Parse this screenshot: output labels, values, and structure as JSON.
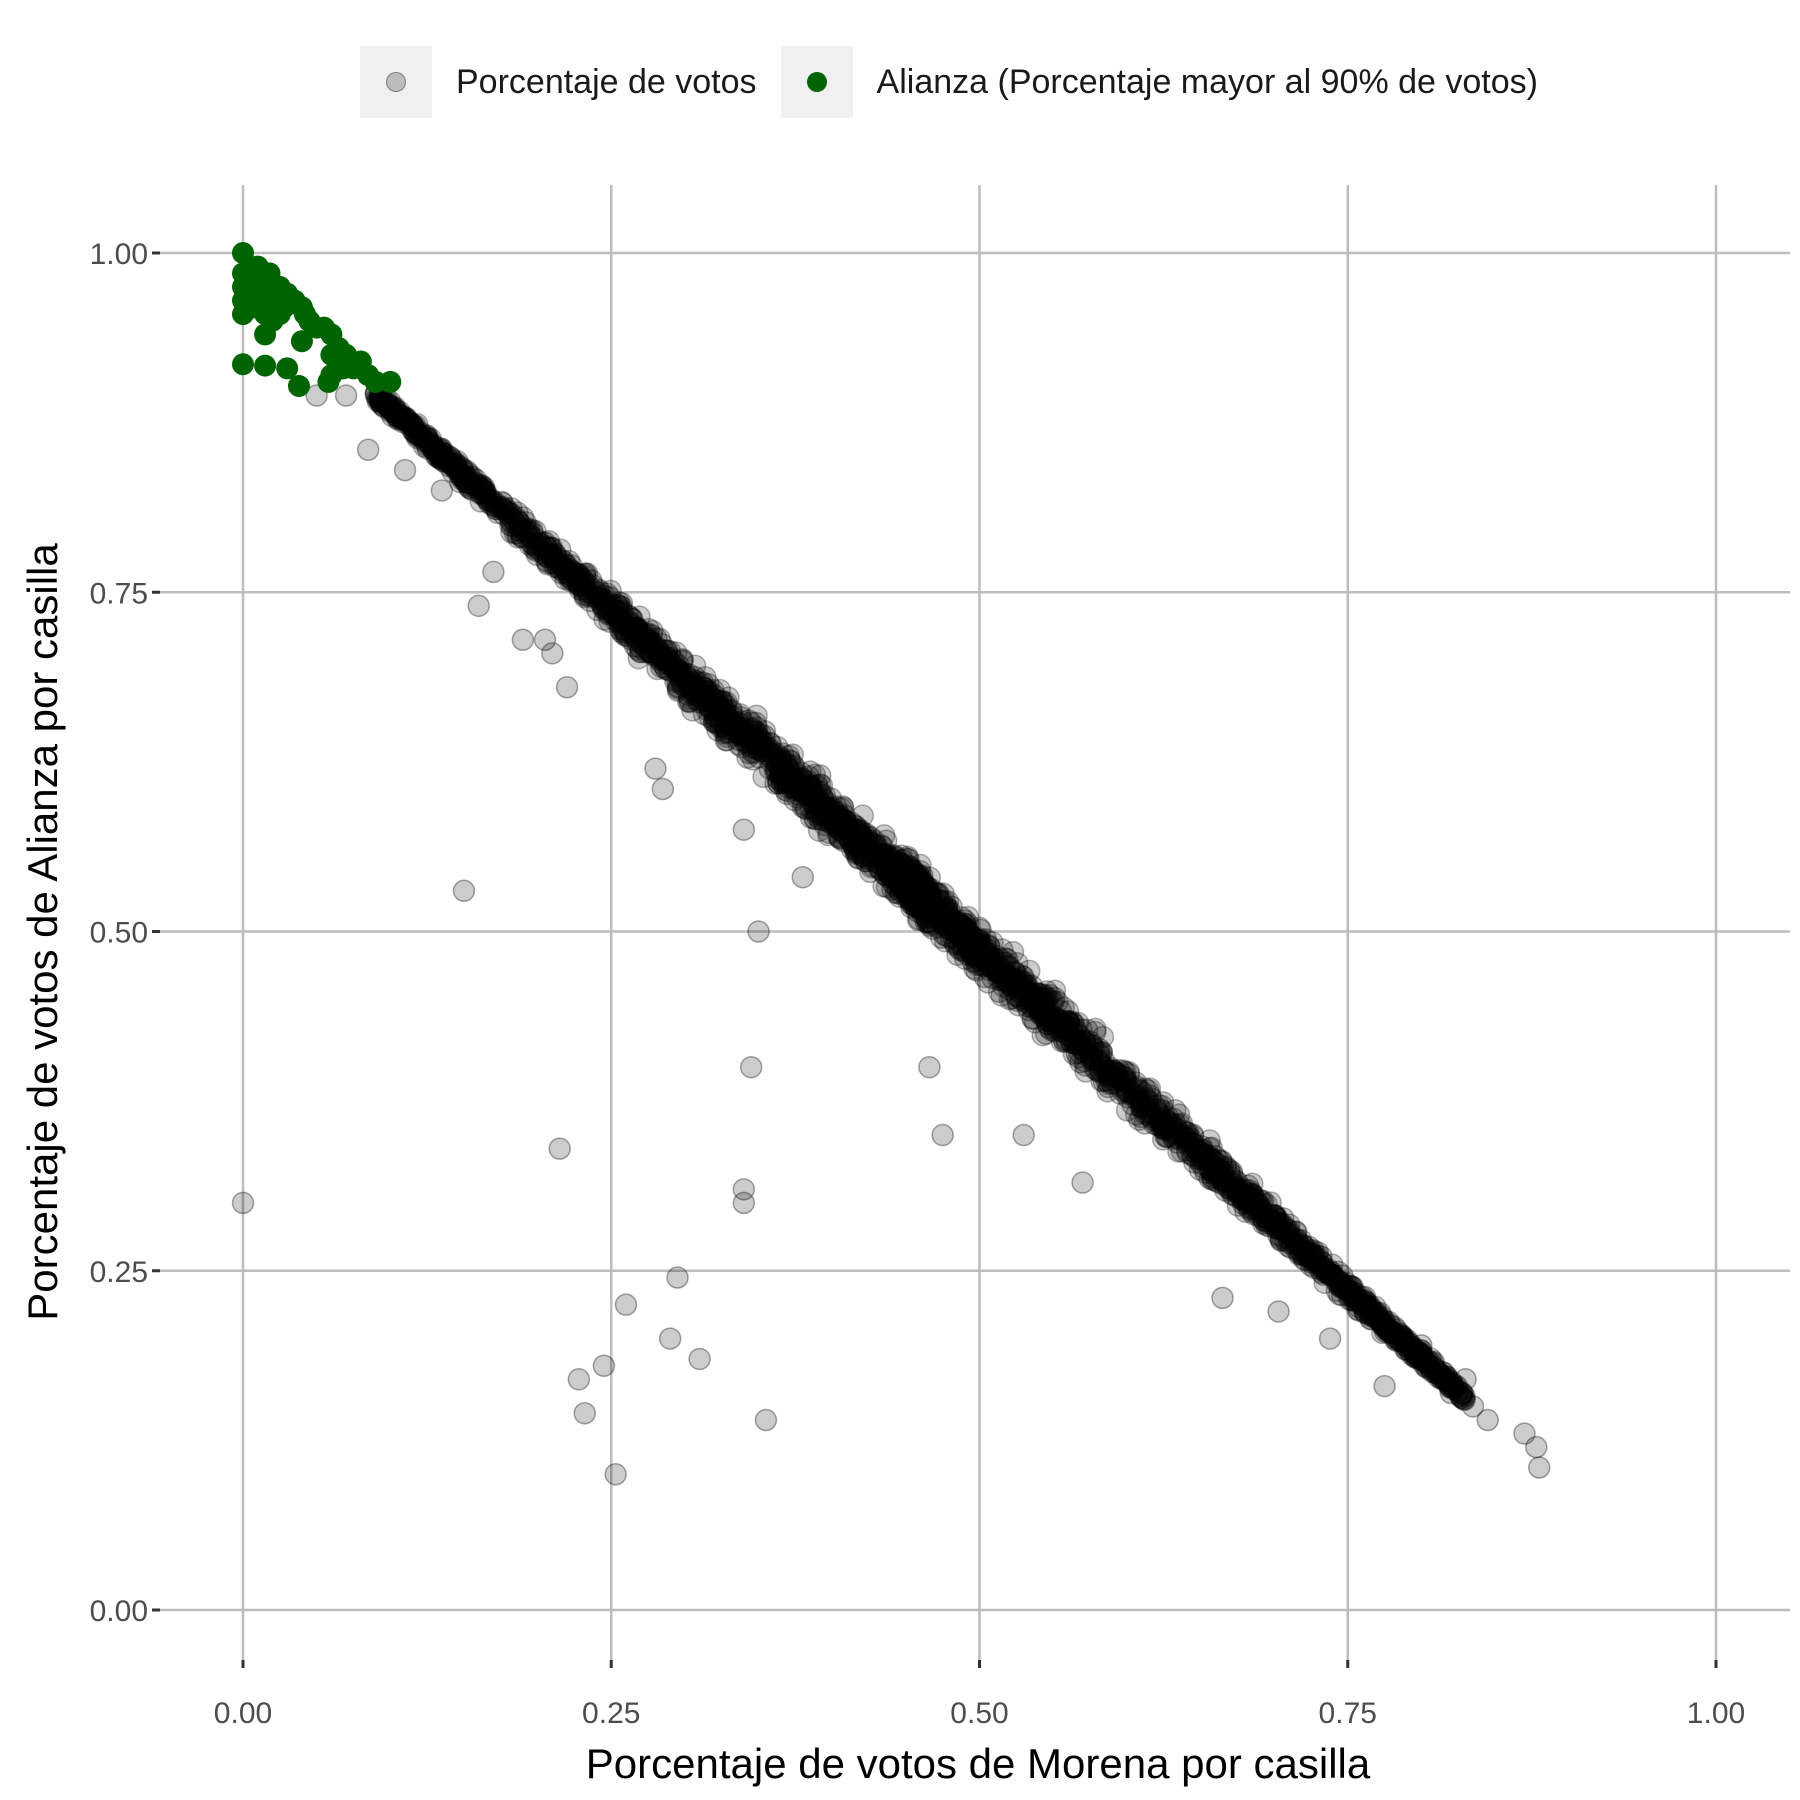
{
  "legend": {
    "item1": "Porcentaje de votos",
    "item2": "Alianza (Porcentaje mayor al 90% de votos)"
  },
  "colors": {
    "points": "#000000",
    "highlight": "#006400",
    "grid": "#bdbdbd"
  },
  "chart_data": {
    "type": "scatter",
    "xlabel": "Porcentaje de votos de Morena por casilla",
    "ylabel": "Porcentaje de votos de Alianza por casilla",
    "xlim": [
      0,
      1
    ],
    "ylim": [
      0,
      1
    ],
    "x_ticks": [
      "0.00",
      "0.25",
      "0.50",
      "0.75",
      "1.00"
    ],
    "y_ticks": [
      "0.00",
      "0.25",
      "0.50",
      "0.75",
      "1.00"
    ],
    "grid": true,
    "legend_position": "top",
    "main_trend": {
      "x_start": 0.09,
      "x_end": 0.83,
      "relation": "y ≈ 0.99 − x"
    },
    "series": [
      {
        "name": "Porcentaje de votos",
        "marker": "grey semi-transparent circle",
        "points": [
          [
            0.0,
            0.3
          ],
          [
            0.15,
            0.53
          ],
          [
            0.35,
            0.5
          ],
          [
            0.345,
            0.4
          ],
          [
            0.215,
            0.34
          ],
          [
            0.34,
            0.31
          ],
          [
            0.34,
            0.3
          ],
          [
            0.295,
            0.245
          ],
          [
            0.26,
            0.225
          ],
          [
            0.29,
            0.2
          ],
          [
            0.31,
            0.185
          ],
          [
            0.245,
            0.18
          ],
          [
            0.228,
            0.17
          ],
          [
            0.232,
            0.145
          ],
          [
            0.355,
            0.14
          ],
          [
            0.253,
            0.1
          ],
          [
            0.475,
            0.35
          ],
          [
            0.466,
            0.4
          ],
          [
            0.57,
            0.315
          ],
          [
            0.53,
            0.35
          ],
          [
            0.665,
            0.23
          ],
          [
            0.703,
            0.22
          ],
          [
            0.738,
            0.2
          ],
          [
            0.775,
            0.165
          ],
          [
            0.82,
            0.16
          ],
          [
            0.835,
            0.15
          ],
          [
            0.845,
            0.14
          ],
          [
            0.87,
            0.13
          ],
          [
            0.878,
            0.12
          ],
          [
            0.88,
            0.105
          ],
          [
            0.83,
            0.17
          ],
          [
            0.8,
            0.195
          ],
          [
            0.085,
            0.855
          ],
          [
            0.11,
            0.84
          ],
          [
            0.16,
            0.74
          ],
          [
            0.19,
            0.715
          ],
          [
            0.205,
            0.715
          ],
          [
            0.22,
            0.68
          ],
          [
            0.28,
            0.62
          ],
          [
            0.285,
            0.605
          ],
          [
            0.05,
            0.895
          ],
          [
            0.07,
            0.895
          ],
          [
            0.17,
            0.765
          ],
          [
            0.34,
            0.575
          ],
          [
            0.38,
            0.54
          ],
          [
            0.135,
            0.825
          ],
          [
            0.21,
            0.705
          ]
        ]
      },
      {
        "name": "Alianza (Porcentaje mayor al 90% de votos)",
        "marker": "green circle",
        "points": [
          [
            0.0,
            1.0
          ],
          [
            0.0,
            0.985
          ],
          [
            0.0,
            0.975
          ],
          [
            0.0,
            0.965
          ],
          [
            0.0,
            0.955
          ],
          [
            0.005,
            0.975
          ],
          [
            0.008,
            0.96
          ],
          [
            0.01,
            0.99
          ],
          [
            0.012,
            0.98
          ],
          [
            0.015,
            0.97
          ],
          [
            0.015,
            0.955
          ],
          [
            0.018,
            0.985
          ],
          [
            0.02,
            0.965
          ],
          [
            0.02,
            0.95
          ],
          [
            0.025,
            0.975
          ],
          [
            0.028,
            0.96
          ],
          [
            0.03,
            0.97
          ],
          [
            0.035,
            0.965
          ],
          [
            0.04,
            0.96
          ],
          [
            0.042,
            0.955
          ],
          [
            0.045,
            0.95
          ],
          [
            0.05,
            0.945
          ],
          [
            0.055,
            0.945
          ],
          [
            0.06,
            0.94
          ],
          [
            0.06,
            0.925
          ],
          [
            0.065,
            0.93
          ],
          [
            0.07,
            0.925
          ],
          [
            0.075,
            0.915
          ],
          [
            0.08,
            0.92
          ],
          [
            0.085,
            0.91
          ],
          [
            0.09,
            0.905
          ],
          [
            0.1,
            0.905
          ],
          [
            0.015,
            0.94
          ],
          [
            0.04,
            0.935
          ],
          [
            0.0,
            0.918
          ],
          [
            0.015,
            0.917
          ],
          [
            0.03,
            0.915
          ],
          [
            0.038,
            0.902
          ],
          [
            0.06,
            0.91
          ],
          [
            0.058,
            0.905
          ],
          [
            0.068,
            0.915
          ],
          [
            0.025,
            0.955
          ]
        ]
      }
    ]
  }
}
